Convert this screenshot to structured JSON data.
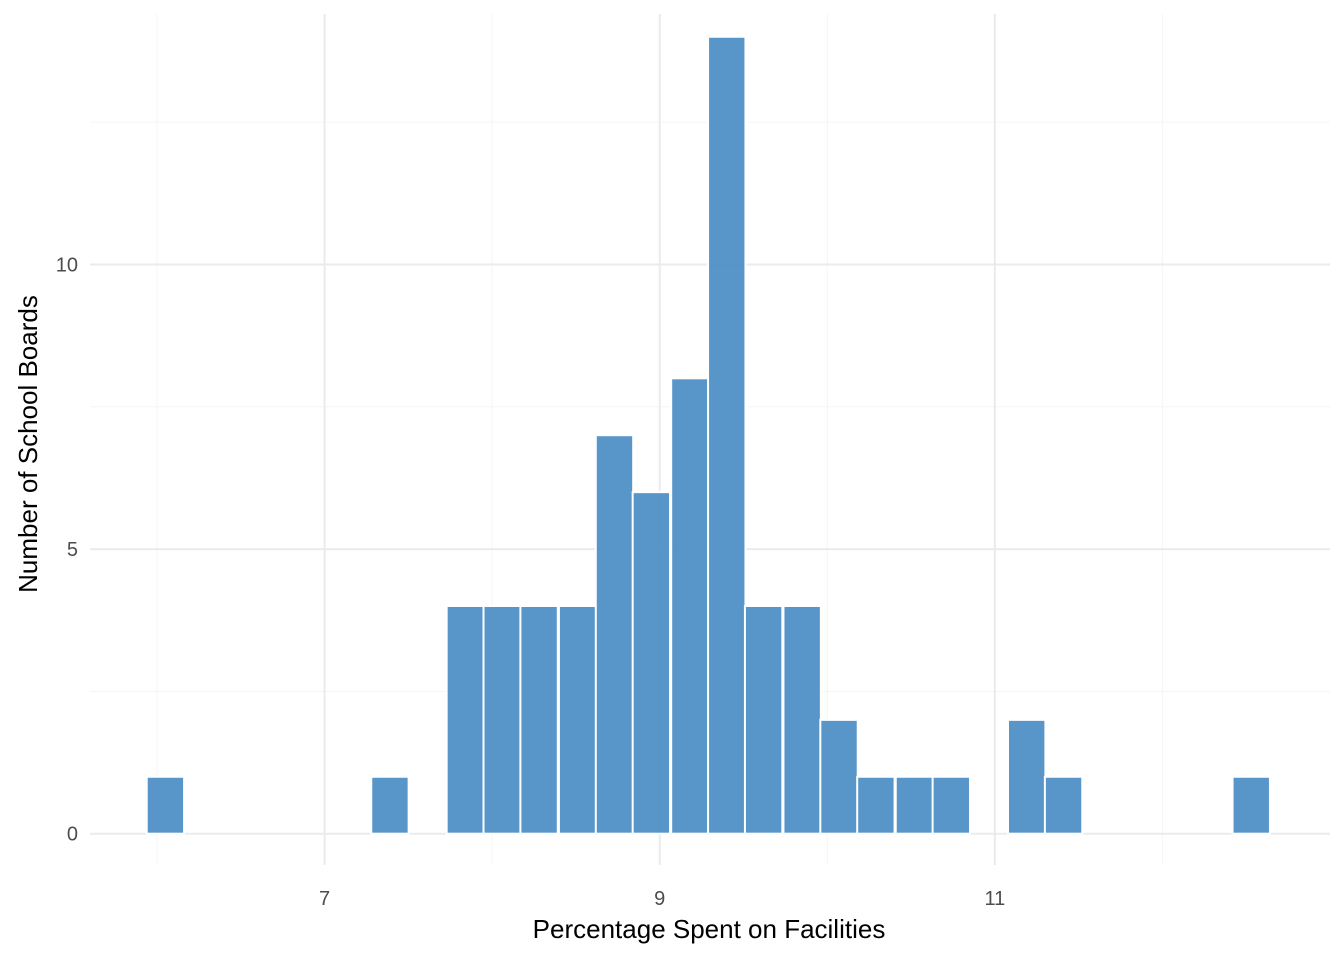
{
  "chart_data": {
    "type": "bar",
    "subtype": "histogram",
    "title": "",
    "xlabel": "Percentage Spent on Facilities",
    "ylabel": "Number of School Boards",
    "xlim": [
      5.6,
      13.0
    ],
    "ylim": [
      -0.55,
      14.4
    ],
    "x_ticks": [
      7,
      9,
      11
    ],
    "y_ticks": [
      0,
      5,
      10
    ],
    "grid": true,
    "bin_width": 0.2231,
    "bars": [
      {
        "x": 6.05,
        "value": 1
      },
      {
        "x": 6.27,
        "value": 0
      },
      {
        "x": 6.5,
        "value": 0
      },
      {
        "x": 6.72,
        "value": 0
      },
      {
        "x": 6.94,
        "value": 0
      },
      {
        "x": 7.17,
        "value": 0
      },
      {
        "x": 7.39,
        "value": 1
      },
      {
        "x": 7.61,
        "value": 0
      },
      {
        "x": 7.84,
        "value": 4
      },
      {
        "x": 8.06,
        "value": 4
      },
      {
        "x": 8.28,
        "value": 4
      },
      {
        "x": 8.51,
        "value": 4
      },
      {
        "x": 8.73,
        "value": 7
      },
      {
        "x": 8.95,
        "value": 6
      },
      {
        "x": 9.18,
        "value": 8
      },
      {
        "x": 9.4,
        "value": 14
      },
      {
        "x": 9.62,
        "value": 4
      },
      {
        "x": 9.85,
        "value": 4
      },
      {
        "x": 10.07,
        "value": 2
      },
      {
        "x": 10.29,
        "value": 1
      },
      {
        "x": 10.52,
        "value": 1
      },
      {
        "x": 10.74,
        "value": 1
      },
      {
        "x": 10.96,
        "value": 0
      },
      {
        "x": 11.19,
        "value": 2
      },
      {
        "x": 11.41,
        "value": 1
      },
      {
        "x": 11.63,
        "value": 0
      },
      {
        "x": 11.86,
        "value": 0
      },
      {
        "x": 12.08,
        "value": 0
      },
      {
        "x": 12.3,
        "value": 0
      },
      {
        "x": 12.53,
        "value": 1
      }
    ],
    "colors": {
      "bar_fill": "#4A8CC4",
      "bar_stroke": "#ffffff",
      "grid_major": "#EBEBEB",
      "grid_minor": "#F5F5F5",
      "tick_text": "#4d4d4d",
      "title_text": "#000000"
    }
  }
}
